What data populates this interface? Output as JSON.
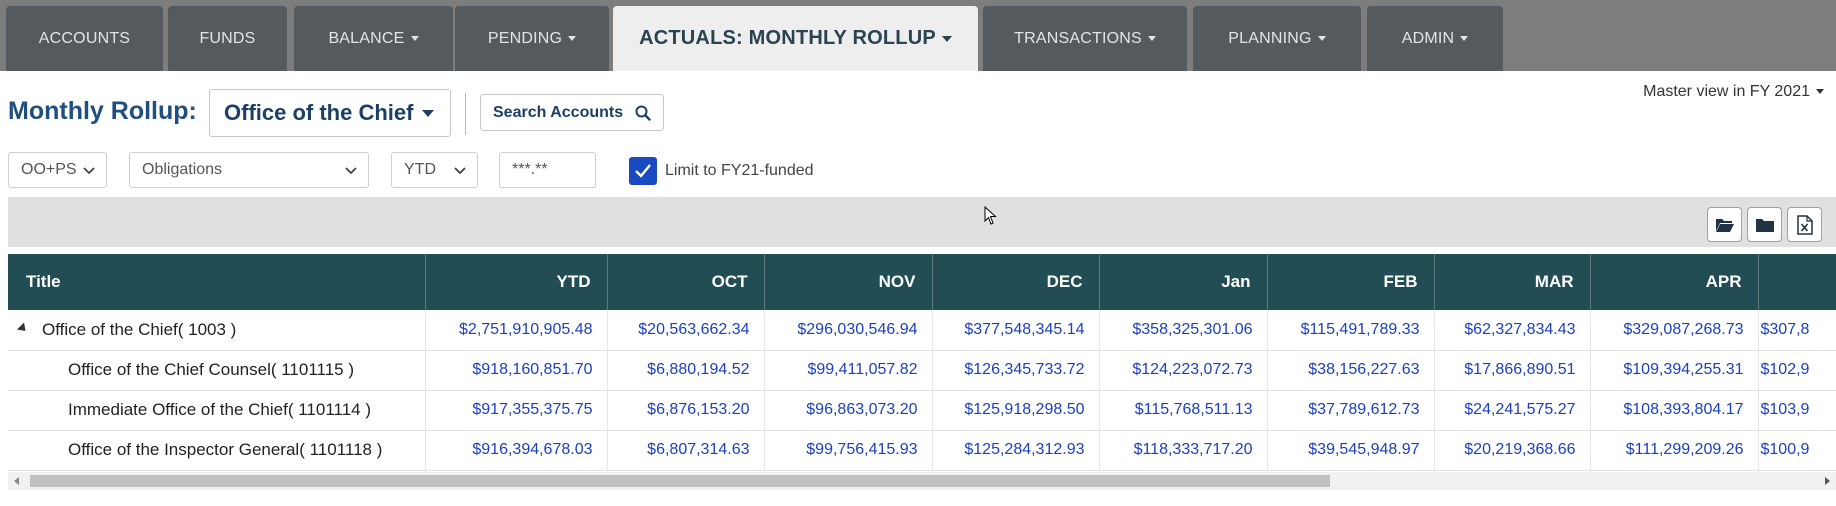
{
  "nav": {
    "tabs": [
      {
        "label": "ACCOUNTS",
        "dropdown": false
      },
      {
        "label": "FUNDS",
        "dropdown": false
      },
      {
        "label": "BALANCE",
        "dropdown": true
      },
      {
        "label": "PENDING",
        "dropdown": true
      },
      {
        "label": "ACTUALS: MONTHLY ROLLUP",
        "dropdown": true,
        "active": true
      },
      {
        "label": "TRANSACTIONS",
        "dropdown": true
      },
      {
        "label": "PLANNING",
        "dropdown": true
      },
      {
        "label": "ADMIN",
        "dropdown": true
      }
    ]
  },
  "header": {
    "title": "Monthly Rollup:",
    "department": "Office of the Chief",
    "search_label": "Search Accounts",
    "master_view": "Master view in FY 2021"
  },
  "filters": {
    "class": "OO+PS",
    "type": "Obligations",
    "period": "YTD",
    "amount_mask": "***.**",
    "limit_label": "Limit to FY21-funded",
    "limit_checked": true
  },
  "colors": {
    "header_bg": "#234d55",
    "link_blue": "#1a3fc2",
    "title_blue": "#1e4f80"
  },
  "table": {
    "columns": [
      "Title",
      "YTD",
      "OCT",
      "NOV",
      "DEC",
      "Jan",
      "FEB",
      "MAR",
      "APR"
    ],
    "rows": [
      {
        "title": "Office of the Chief( 1003 )",
        "level": 0,
        "values": [
          "$2,751,910,905.48",
          "$20,563,662.34",
          "$296,030,546.94",
          "$377,548,345.14",
          "$358,325,301.06",
          "$115,491,789.33",
          "$62,327,834.43",
          "$329,087,268.73",
          "$307,8"
        ]
      },
      {
        "title": "Office of the Chief Counsel( 1101115 )",
        "level": 1,
        "values": [
          "$918,160,851.70",
          "$6,880,194.52",
          "$99,411,057.82",
          "$126,345,733.72",
          "$124,223,072.73",
          "$38,156,227.63",
          "$17,866,890.51",
          "$109,394,255.31",
          "$102,9"
        ]
      },
      {
        "title": "Immediate Office of the Chief( 1101114 )",
        "level": 1,
        "values": [
          "$917,355,375.75",
          "$6,876,153.20",
          "$96,863,073.20",
          "$125,918,298.50",
          "$115,768,511.13",
          "$37,789,612.73",
          "$24,241,575.27",
          "$108,393,804.17",
          "$103,9"
        ]
      },
      {
        "title": "Office of the Inspector General( 1101118 )",
        "level": 1,
        "values": [
          "$916,394,678.03",
          "$6,807,314.63",
          "$99,756,415.93",
          "$125,284,312.93",
          "$118,333,717.20",
          "$39,545,948.97",
          "$20,219,368.66",
          "$111,299,209.26",
          "$100,9"
        ]
      }
    ]
  }
}
